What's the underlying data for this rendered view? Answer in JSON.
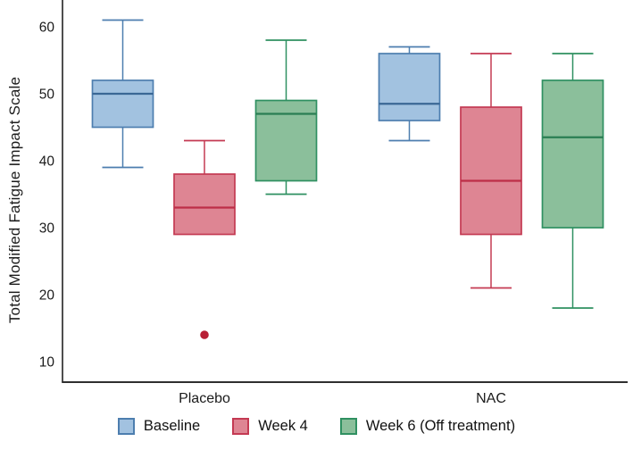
{
  "figure": {
    "ylabel": "Total Modified Fatigue Impact Scale"
  },
  "chart_data": {
    "type": "box",
    "title": "",
    "xlabel": "",
    "ylabel": "Total Modified Fatigue Impact Scale",
    "categories": [
      "Placebo",
      "NAC"
    ],
    "yticks": [
      10,
      20,
      30,
      40,
      50,
      60
    ],
    "ylim": [
      7,
      64
    ],
    "grid": false,
    "legend_position": "bottom",
    "axis_color": "#2f2f2f",
    "outlier_color": "#b81f35",
    "series": [
      {
        "name": "Baseline",
        "fill": "#a2c2e0",
        "stroke": "#4d7eaf",
        "median_color": "#3a6795",
        "boxes": [
          {
            "category": "Placebo",
            "whisker_low": 39,
            "q1": 45,
            "median": 50,
            "q3": 52,
            "whisker_high": 61,
            "outliers": []
          },
          {
            "category": "NAC",
            "whisker_low": 43,
            "q1": 46,
            "median": 48.5,
            "q3": 56,
            "whisker_high": 57,
            "outliers": []
          }
        ]
      },
      {
        "name": "Week 4",
        "fill": "#de8593",
        "stroke": "#c43a53",
        "median_color": "#bd2e47",
        "boxes": [
          {
            "category": "Placebo",
            "whisker_low": 29,
            "q1": 29,
            "median": 33,
            "q3": 38,
            "whisker_high": 43,
            "outliers": [
              14
            ]
          },
          {
            "category": "NAC",
            "whisker_low": 21,
            "q1": 29,
            "median": 37,
            "q3": 48,
            "whisker_high": 56,
            "outliers": []
          }
        ]
      },
      {
        "name": "Week 6 (Off treatment)",
        "fill": "#8bbf9b",
        "stroke": "#2f9061",
        "median_color": "#2a7e53",
        "boxes": [
          {
            "category": "Placebo",
            "whisker_low": 35,
            "q1": 37,
            "median": 47,
            "q3": 49,
            "whisker_high": 58,
            "outliers": []
          },
          {
            "category": "NAC",
            "whisker_low": 18,
            "q1": 30,
            "median": 43.5,
            "q3": 52,
            "whisker_high": 56,
            "outliers": []
          }
        ]
      }
    ]
  }
}
